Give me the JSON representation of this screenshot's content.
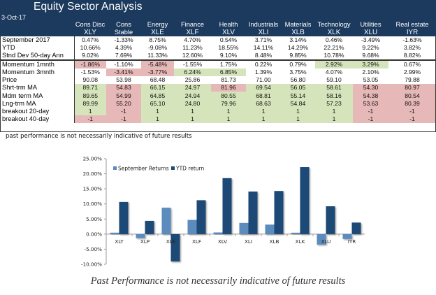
{
  "header": {
    "title": "Equity Sector  Analysis",
    "date": "3-Oct-17"
  },
  "columns": [
    {
      "sector": "Cons Disc",
      "ticker": "XLY"
    },
    {
      "sector": "Cons Stable",
      "ticker": "XLP"
    },
    {
      "sector": "Energy",
      "ticker": "XLE"
    },
    {
      "sector": "Finance",
      "ticker": "XLF"
    },
    {
      "sector": "Health",
      "ticker": "XLV"
    },
    {
      "sector": "Industrials",
      "ticker": "XLI"
    },
    {
      "sector": "Materials",
      "ticker": "XLB"
    },
    {
      "sector": "Technology",
      "ticker": "XLK"
    },
    {
      "sector": "Utilities",
      "ticker": "XLU"
    },
    {
      "sector": "Real estate",
      "ticker": "IYR"
    }
  ],
  "rows": [
    {
      "label": "September 2017",
      "values": [
        "0.47%",
        "-1.33%",
        "8.75%",
        "4.70%",
        "0.54%",
        "3.71%",
        "3.14%",
        "0.46%",
        "-3.49%",
        "-1.63%"
      ],
      "status": [
        "",
        "",
        "",
        "",
        "",
        "",
        "",
        "",
        "",
        ""
      ]
    },
    {
      "label": "YTD",
      "values": [
        "10.66%",
        "4.39%",
        "-9.08%",
        "11.23%",
        "18.55%",
        "14.11%",
        "14.29%",
        "22.21%",
        "9.22%",
        "3.82%"
      ],
      "status": [
        "",
        "",
        "",
        "",
        "",
        "",
        "",
        "",
        "",
        ""
      ]
    },
    {
      "label": "Stnd Dev 50-day Ann",
      "values": [
        "9.02%",
        "7.69%",
        "11.33%",
        "12.60%",
        "9.10%",
        "8.48%",
        "9.85%",
        "10.78%",
        "9.68%",
        "8.82%"
      ],
      "status": [
        "",
        "",
        "",
        "",
        "",
        "",
        "",
        "",
        "",
        ""
      ]
    },
    {
      "label": "Momentum 1mnth",
      "values": [
        "-1.86%",
        "-1.10%",
        "-5.48%",
        "-1.55%",
        "1.75%",
        "0.22%",
        "0.79%",
        "2.92%",
        "3.29%",
        "0.67%"
      ],
      "status": [
        "neg",
        "",
        "neg",
        "",
        "",
        "",
        "",
        "pos",
        "pos",
        ""
      ]
    },
    {
      "label": "Momentum 3mnth",
      "values": [
        "-1.53%",
        "-3.41%",
        "-3.77%",
        "6.24%",
        "6.85%",
        "1.39%",
        "3.75%",
        "4.07%",
        "2.10%",
        "2.99%"
      ],
      "status": [
        "",
        "neg",
        "neg",
        "pos",
        "pos",
        "",
        "",
        "",
        "",
        ""
      ]
    },
    {
      "label": "Price",
      "values": [
        "90.08",
        "53.98",
        "68.48",
        "25.86",
        "81.73",
        "71.00",
        "56.80",
        "59.10",
        "53.05",
        "79.88"
      ],
      "status": [
        "",
        "",
        "",
        "",
        "",
        "",
        "",
        "",
        "",
        ""
      ]
    },
    {
      "label": "Shrt-trm MA",
      "values": [
        "89.71",
        "54.83",
        "66.15",
        "24.97",
        "81.96",
        "69.54",
        "56.05",
        "58.61",
        "54.30",
        "80.97"
      ],
      "status": [
        "pos",
        "neg",
        "pos",
        "pos",
        "neg",
        "pos",
        "pos",
        "pos",
        "neg",
        "neg"
      ]
    },
    {
      "label": "Mdm term MA",
      "values": [
        "89.65",
        "54.99",
        "64.85",
        "24.94",
        "80.55",
        "68.81",
        "55.14",
        "58.16",
        "54.38",
        "80.54"
      ],
      "status": [
        "pos",
        "neg",
        "pos",
        "pos",
        "pos",
        "pos",
        "pos",
        "pos",
        "neg",
        "neg"
      ]
    },
    {
      "label": "Lng-trm MA",
      "values": [
        "89.99",
        "55.20",
        "65.10",
        "24.80",
        "79.96",
        "68.63",
        "54.84",
        "57.23",
        "53.63",
        "80.39"
      ],
      "status": [
        "pos",
        "neg",
        "pos",
        "pos",
        "pos",
        "pos",
        "pos",
        "pos",
        "neg",
        "neg"
      ]
    },
    {
      "label": "breakout 20-day",
      "values": [
        "1",
        "-1",
        "1",
        "1",
        "1",
        "1",
        "1",
        "1",
        "-1",
        "-1"
      ],
      "status": [
        "pos",
        "neg",
        "pos",
        "pos",
        "pos",
        "pos",
        "pos",
        "pos",
        "neg",
        "neg"
      ]
    },
    {
      "label": "breakout 40-day",
      "values": [
        "-1",
        "-1",
        "1",
        "1",
        "1",
        "1",
        "1",
        "1",
        "-1",
        "-1"
      ],
      "status": [
        "neg",
        "neg",
        "pos",
        "pos",
        "pos",
        "pos",
        "pos",
        "pos",
        "neg",
        "neg"
      ]
    }
  ],
  "small_note": "past performance is not necessarily indicative of future results",
  "footer_note": "Past Performance is not necessarily indicative of future results",
  "colors": {
    "header_bg": "#1c3a5e",
    "positive_fill": "#d6e4bc",
    "negative_fill": "#e6b8b7",
    "september_series": "#5b8bbd",
    "ytd_series": "#1f4a75"
  },
  "chart_data": {
    "type": "bar",
    "title": "",
    "xlabel": "",
    "ylabel": "",
    "categories": [
      "XLY",
      "XLP",
      "XLE",
      "XLF",
      "XLV",
      "XLI",
      "XLB",
      "XLK",
      "XLU",
      "IYR"
    ],
    "series": [
      {
        "name": "September Returns",
        "values": [
          0.47,
          -1.33,
          8.75,
          4.7,
          0.54,
          3.71,
          3.14,
          0.46,
          -3.49,
          -1.63
        ]
      },
      {
        "name": "YTD return",
        "values": [
          10.66,
          4.39,
          -9.08,
          11.23,
          18.55,
          14.11,
          14.29,
          22.21,
          9.22,
          3.82
        ]
      }
    ],
    "ylim": [
      -10,
      25
    ],
    "yticks": [
      -10,
      -5,
      0,
      5,
      10,
      15,
      20,
      25
    ],
    "ytick_labels": [
      "-10.00%",
      "-5.00%",
      "0.00%",
      "5.00%",
      "10.00%",
      "15.00%",
      "20.00%",
      "25.00%"
    ],
    "grid": false,
    "legend": "top-left"
  }
}
